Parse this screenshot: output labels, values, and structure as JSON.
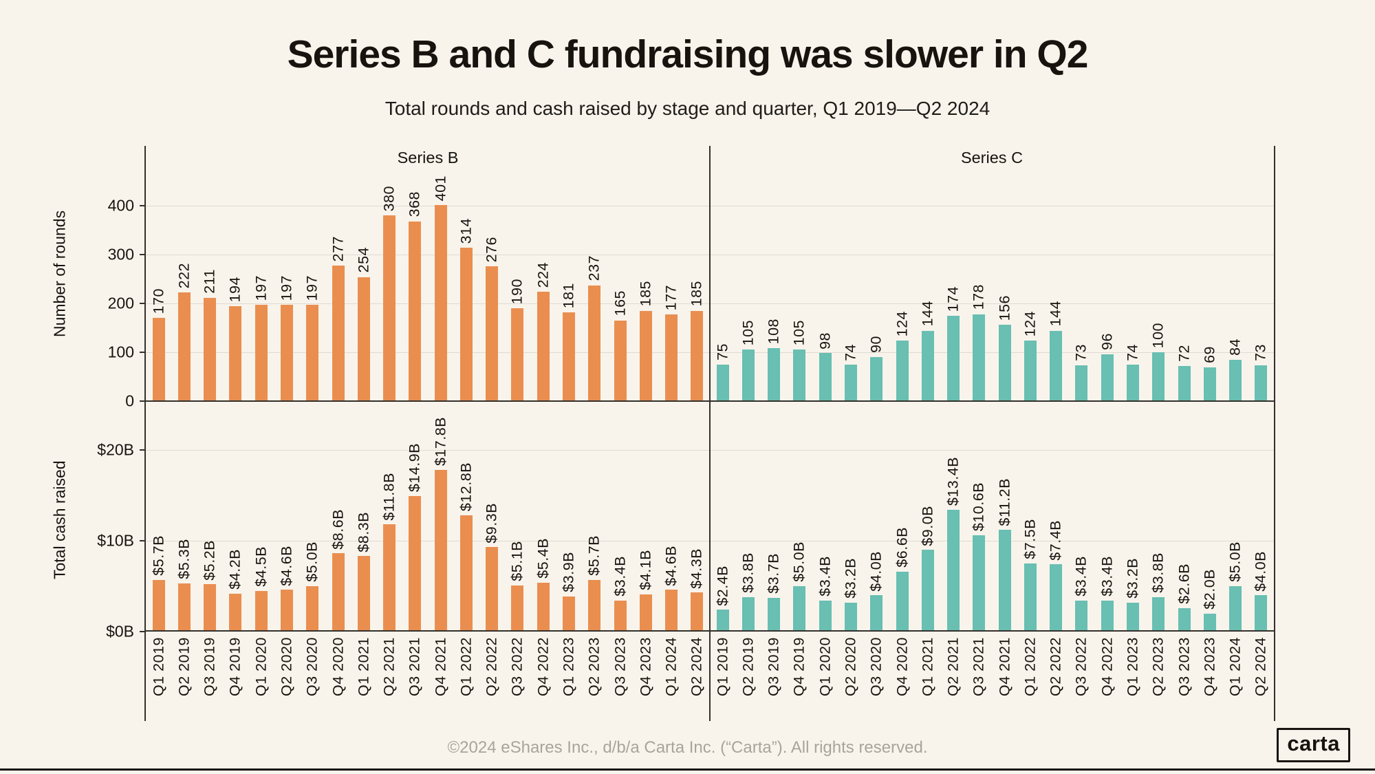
{
  "title": "Series B and C fundraising was slower in Q2",
  "subtitle": "Total rounds and cash raised by stage and quarter, Q1 2019—Q2 2024",
  "footer_text": "©2024 eShares Inc., d/b/a Carta Inc. (“Carta”). All rights reserved.",
  "logo_text": "carta",
  "colors": {
    "background": "#F8F4EC",
    "series_b": "#EA8E50",
    "series_c": "#68BFB2",
    "gridline": "#DFDAD2",
    "axis": "#33302B",
    "ink": "#17130E",
    "muted": "#A9A39B"
  },
  "chart_data": {
    "type": "bar",
    "title": "Series B and C fundraising was slower in Q2",
    "subtitle": "Total rounds and cash raised by stage and quarter, Q1 2019—Q2 2024",
    "legend_position": "none",
    "grid": true,
    "categories": [
      "Q1 2019",
      "Q2 2019",
      "Q3 2019",
      "Q4 2019",
      "Q1 2020",
      "Q2 2020",
      "Q3 2020",
      "Q4 2020",
      "Q1 2021",
      "Q2 2021",
      "Q3 2021",
      "Q4 2021",
      "Q1 2022",
      "Q2 2022",
      "Q3 2022",
      "Q4 2022",
      "Q1 2023",
      "Q2 2023",
      "Q3 2023",
      "Q4 2023",
      "Q1 2024",
      "Q2 2024"
    ],
    "facets": [
      {
        "label": "Series B",
        "color": "#EA8E50"
      },
      {
        "label": "Series C",
        "color": "#68BFB2"
      }
    ],
    "rows": [
      {
        "metric": "Number of rounds",
        "ylim": [
          0,
          520
        ],
        "yticks": [
          {
            "v": 0,
            "label": "0"
          },
          {
            "v": 100,
            "label": "100"
          },
          {
            "v": 200,
            "label": "200"
          },
          {
            "v": 300,
            "label": "300"
          },
          {
            "v": 400,
            "label": "400"
          }
        ],
        "series": [
          {
            "facet": "Series B",
            "values": [
              170,
              222,
              211,
              194,
              197,
              197,
              197,
              277,
              254,
              380,
              368,
              401,
              314,
              276,
              190,
              224,
              181,
              237,
              165,
              185,
              177,
              185
            ],
            "labels": [
              "170",
              "222",
              "211",
              "194",
              "197",
              "197",
              "197",
              "277",
              "254",
              "380",
              "368",
              "401",
              "314",
              "276",
              "190",
              "224",
              "181",
              "237",
              "165",
              "185",
              "177",
              "185"
            ]
          },
          {
            "facet": "Series C",
            "values": [
              75,
              105,
              108,
              105,
              98,
              74,
              90,
              124,
              144,
              174,
              178,
              156,
              124,
              144,
              73,
              96,
              74,
              100,
              72,
              69,
              84,
              73
            ],
            "labels": [
              "75",
              "105",
              "108",
              "105",
              "98",
              "74",
              "90",
              "124",
              "144",
              "174",
              "178",
              "156",
              "124",
              "144",
              "73",
              "96",
              "74",
              "100",
              "72",
              "69",
              "84",
              "73"
            ]
          }
        ]
      },
      {
        "metric": "Total cash raised",
        "ylim": [
          0,
          24.5
        ],
        "yticks": [
          {
            "v": 0,
            "label": "$0B"
          },
          {
            "v": 10,
            "label": "$10B"
          },
          {
            "v": 20,
            "label": "$20B"
          }
        ],
        "series": [
          {
            "facet": "Series B",
            "values": [
              5.7,
              5.3,
              5.2,
              4.2,
              4.5,
              4.6,
              5.0,
              8.6,
              8.3,
              11.8,
              14.9,
              17.8,
              12.8,
              9.3,
              5.1,
              5.4,
              3.9,
              5.7,
              3.4,
              4.1,
              4.6,
              4.3
            ],
            "labels": [
              "$5.7B",
              "$5.3B",
              "$5.2B",
              "$4.2B",
              "$4.5B",
              "$4.6B",
              "$5.0B",
              "$8.6B",
              "$8.3B",
              "$11.8B",
              "$14.9B",
              "$17.8B",
              "$12.8B",
              "$9.3B",
              "$5.1B",
              "$5.4B",
              "$3.9B",
              "$5.7B",
              "$3.4B",
              "$4.1B",
              "$4.6B",
              "$4.3B"
            ]
          },
          {
            "facet": "Series C",
            "values": [
              2.4,
              3.8,
              3.7,
              5.0,
              3.4,
              3.2,
              4.0,
              6.6,
              9.0,
              13.4,
              10.6,
              11.2,
              7.5,
              7.4,
              3.4,
              3.4,
              3.2,
              3.8,
              2.6,
              2.0,
              5.0,
              4.0
            ],
            "labels": [
              "$2.4B",
              "$3.8B",
              "$3.7B",
              "$5.0B",
              "$3.4B",
              "$3.2B",
              "$4.0B",
              "$6.6B",
              "$9.0B",
              "$13.4B",
              "$10.6B",
              "$11.2B",
              "$7.5B",
              "$7.4B",
              "$3.4B",
              "$3.4B",
              "$3.2B",
              "$3.8B",
              "$2.6B",
              "$2.0B",
              "$5.0B",
              "$4.0B"
            ]
          }
        ]
      }
    ]
  }
}
